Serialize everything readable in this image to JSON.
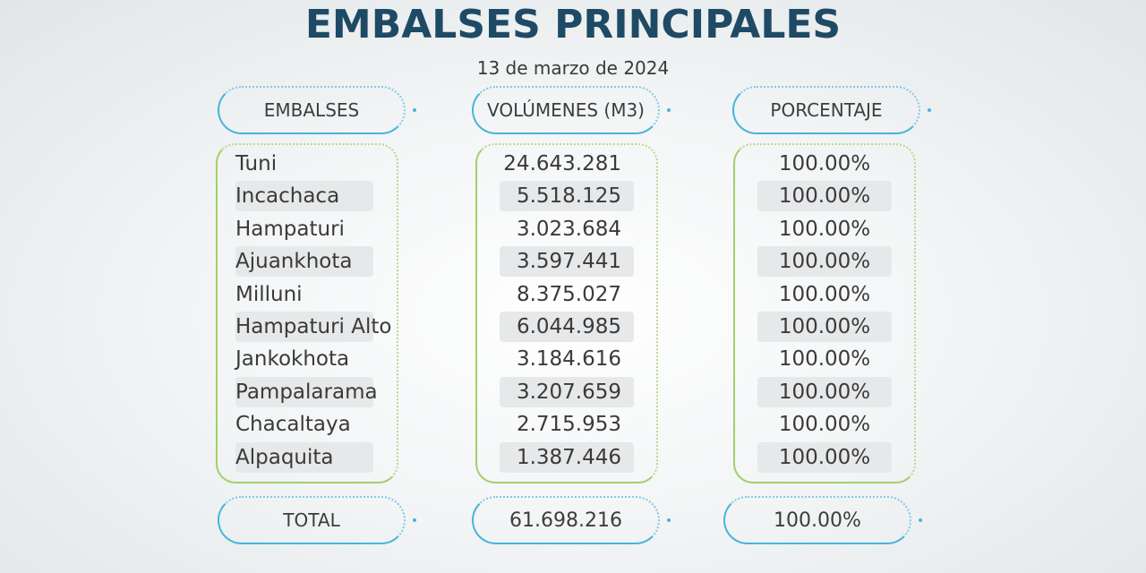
{
  "title": "EMBALSES PRINCIPALES",
  "date": "13 de marzo de 2024",
  "headers": {
    "embalses": "EMBALSES",
    "volumenes": "VOLÚMENES (M3)",
    "porcentaje": "PORCENTAJE"
  },
  "rows": [
    {
      "name": "Tuni",
      "volume": "24.643.281",
      "percent": "100.00%"
    },
    {
      "name": "Incachaca",
      "volume": "5.518.125",
      "percent": "100.00%"
    },
    {
      "name": "Hampaturi",
      "volume": "3.023.684",
      "percent": "100.00%"
    },
    {
      "name": "Ajuankhota",
      "volume": "3.597.441",
      "percent": "100.00%"
    },
    {
      "name": "Milluni",
      "volume": "8.375.027",
      "percent": "100.00%"
    },
    {
      "name": "Hampaturi Alto",
      "volume": "6.044.985",
      "percent": "100.00%"
    },
    {
      "name": "Jankokhota",
      "volume": "3.184.616",
      "percent": "100.00%"
    },
    {
      "name": "Pampalarama",
      "volume": "3.207.659",
      "percent": "100.00%"
    },
    {
      "name": "Chacaltaya",
      "volume": "2.715.953",
      "percent": "100.00%"
    },
    {
      "name": "Alpaquita",
      "volume": "1.387.446",
      "percent": "100.00%"
    }
  ],
  "total": {
    "label": "TOTAL",
    "volume": "61.698.216",
    "percent": "100.00%"
  },
  "colors": {
    "title": "#1f4a66",
    "header_border": "#47b4dc",
    "box_border": "#a3cf6b",
    "row_shade": "#e6e8ea"
  }
}
